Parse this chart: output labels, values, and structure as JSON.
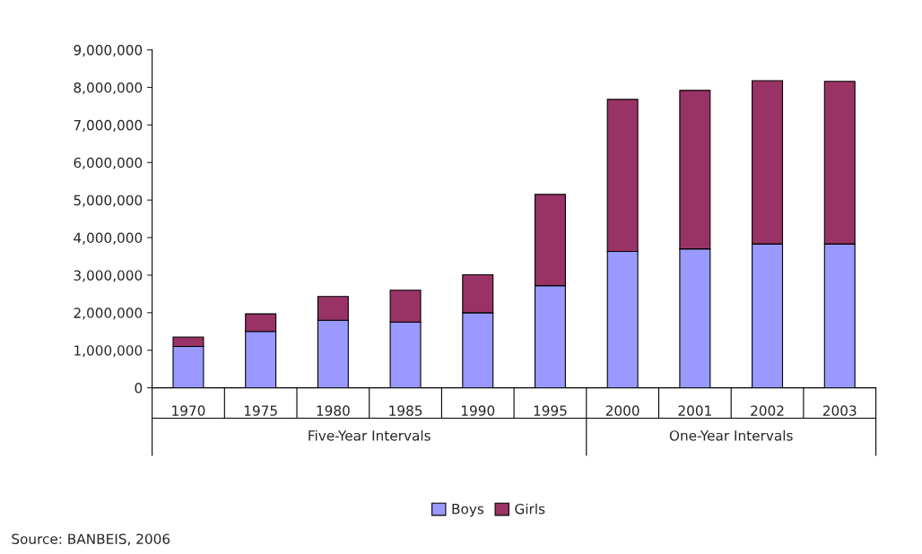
{
  "chart_data": {
    "type": "bar",
    "stacked": true,
    "categories": [
      "1970",
      "1975",
      "1980",
      "1985",
      "1990",
      "1995",
      "2000",
      "2001",
      "2002",
      "2003"
    ],
    "series": [
      {
        "name": "Boys",
        "color": "#9999ff",
        "values": [
          1100000,
          1500000,
          1800000,
          1750000,
          2000000,
          2720000,
          3630000,
          3700000,
          3830000,
          3830000
        ]
      },
      {
        "name": "Girls",
        "color": "#993366",
        "values": [
          250000,
          470000,
          630000,
          850000,
          1010000,
          2430000,
          4050000,
          4220000,
          4350000,
          4330000
        ]
      }
    ],
    "ylim": [
      0,
      9000000
    ],
    "yticks": [
      {
        "value": 0,
        "label": "0"
      },
      {
        "value": 1000000,
        "label": "1,000,000"
      },
      {
        "value": 2000000,
        "label": "2,000,000"
      },
      {
        "value": 3000000,
        "label": "3,000,000"
      },
      {
        "value": 4000000,
        "label": "4,000,000"
      },
      {
        "value": 5000000,
        "label": "5,000,000"
      },
      {
        "value": 6000000,
        "label": "6,000,000"
      },
      {
        "value": 7000000,
        "label": "7,000,000"
      },
      {
        "value": 8000000,
        "label": "8,000,000"
      },
      {
        "value": 9000000,
        "label": "9,000,000"
      }
    ],
    "annotations": [
      "Five-Year Intervals",
      "One-Year Intervals",
      "Source: BANBEIS, 2006"
    ],
    "legend": "bottom",
    "grid": false
  }
}
